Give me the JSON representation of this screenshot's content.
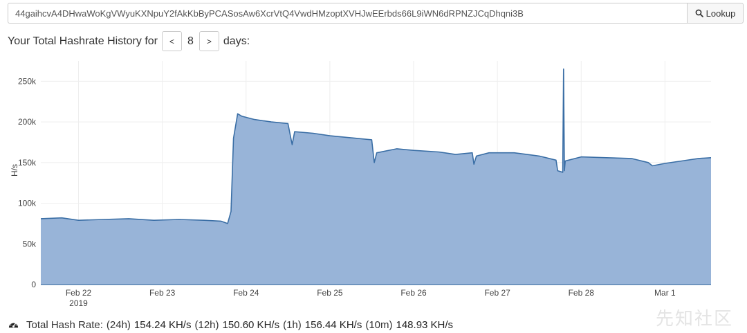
{
  "search": {
    "value": "44gaihcvA4DHwaWoKgVWyuKXNpuY2fAkKbByPCASosAw6XcrVtQ4VwdHMzoptXVHJwEErbds66L9iWN6dRPNZJCqDhqni3B",
    "button_label": "Lookup",
    "button_icon": "search-icon"
  },
  "history": {
    "prefix": "Your Total Hashrate History for",
    "prev_label": "<",
    "days": "8",
    "next_label": ">",
    "suffix": "days:"
  },
  "chart_data": {
    "type": "area",
    "ylabel": "H/s",
    "ylim": [
      0,
      275000
    ],
    "y_ticks": [
      0,
      50000,
      100000,
      150000,
      200000,
      250000
    ],
    "y_tick_labels": [
      "0",
      "50k",
      "100k",
      "150k",
      "200k",
      "250k"
    ],
    "x_ticks": [
      22,
      23,
      24,
      25,
      26,
      27,
      28,
      29
    ],
    "x_tick_labels": [
      "Feb 22",
      "Feb 23",
      "Feb 24",
      "Feb 25",
      "Feb 26",
      "Feb 27",
      "Feb 28",
      "Mar 1"
    ],
    "x_tick_sublabels": [
      "2019",
      "",
      "",
      "",
      "",
      "",
      "",
      ""
    ],
    "x_unit": "day of Feb 2019",
    "xlim": [
      21.55,
      29.55
    ],
    "grid": true,
    "fill_color": "#98b4d8",
    "line_color": "#3a6ea5",
    "series": [
      {
        "x": [
          21.55,
          21.8,
          22.0,
          22.3,
          22.6,
          22.9,
          23.2,
          23.5,
          23.7,
          23.78,
          23.82,
          23.85,
          23.9,
          23.95,
          24.1,
          24.3,
          24.5,
          24.55,
          24.58,
          24.8,
          25.0,
          25.3,
          25.5,
          25.53,
          25.56,
          25.8,
          26.0,
          26.3,
          26.5,
          26.7,
          26.72,
          26.75,
          26.9,
          27.2,
          27.5,
          27.7,
          27.72,
          27.78,
          27.79,
          27.8,
          27.81,
          27.85,
          28.0,
          28.3,
          28.6,
          28.8,
          28.85,
          29.0,
          29.2,
          29.4,
          29.55
        ],
        "y": [
          81000,
          82000,
          79000,
          80000,
          81000,
          79000,
          80000,
          79000,
          78000,
          75000,
          90000,
          180000,
          210000,
          207000,
          203000,
          200000,
          198000,
          172000,
          188000,
          186000,
          183000,
          180000,
          178000,
          150000,
          162000,
          167000,
          165000,
          163000,
          160000,
          162000,
          148000,
          158000,
          162000,
          162000,
          158000,
          153000,
          140000,
          138000,
          265000,
          140000,
          152000,
          153000,
          157000,
          156000,
          155000,
          150000,
          146000,
          149000,
          152000,
          155000,
          156000
        ]
      }
    ]
  },
  "summary": {
    "icon": "speedometer-icon",
    "title": "Total Hash Rate:",
    "rates": [
      {
        "label": "(24h)",
        "value": "154.24 KH/s"
      },
      {
        "label": "(12h)",
        "value": "150.60 KH/s"
      },
      {
        "label": "(1h)",
        "value": "156.44 KH/s"
      },
      {
        "label": "(10m)",
        "value": "148.93 KH/s"
      }
    ]
  },
  "watermark": "先知社区"
}
